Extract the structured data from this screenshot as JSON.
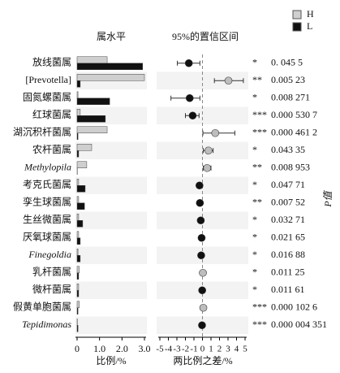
{
  "chart_data": [
    {
      "type": "hbar",
      "title": "属水平",
      "xlabel": "比例/%",
      "categories": [
        "放线菌属",
        "[Prevotella]",
        "固氮螺菌属",
        "红球菌属",
        "湖沉积杆菌属",
        "农杆菌属",
        "Methylopila",
        "考克氏菌属",
        "孪生球菌属",
        "生丝微菌属",
        "厌氧球菌属",
        "Finegoldia",
        "乳杆菌属",
        "微杆菌属",
        "假黄单胞菌属",
        "Tepidimonas"
      ],
      "italic": [
        false,
        false,
        false,
        false,
        false,
        false,
        true,
        false,
        false,
        false,
        false,
        true,
        false,
        false,
        false,
        true
      ],
      "series": [
        {
          "name": "H",
          "color": "#cfcfcf",
          "values": [
            1.34,
            3.0,
            0.04,
            0.14,
            1.34,
            0.65,
            0.43,
            0.07,
            0.07,
            0.07,
            0.07,
            0.04,
            0.1,
            0.07,
            0.1,
            0.01
          ]
        },
        {
          "name": "L",
          "color": "#111111",
          "values": [
            2.92,
            0.14,
            1.45,
            1.26,
            0.04,
            0.07,
            0.01,
            0.36,
            0.33,
            0.25,
            0.14,
            0.14,
            0.07,
            0.07,
            0.04,
            0.04
          ]
        }
      ],
      "xlim": [
        0,
        3.0
      ],
      "xticks": [
        0,
        {
          "value": 1,
          "label": "1.0"
        },
        {
          "value": 2,
          "label": "2.0"
        },
        {
          "value": 3,
          "label": "3.0"
        }
      ]
    },
    {
      "type": "errorbar",
      "title": "95%的置信区间",
      "xlabel": "两比例之差/%",
      "ylabel": "P值",
      "values": [
        -1.6,
        3.05,
        -1.5,
        -1.15,
        1.5,
        0.7,
        0.55,
        -0.35,
        -0.3,
        -0.2,
        -0.1,
        -0.15,
        0.05,
        -0.03,
        0.1,
        -0.05
      ],
      "lower": [
        -2.95,
        1.4,
        -3.7,
        -2.0,
        0.05,
        0.1,
        0.1,
        -0.6,
        -0.5,
        -0.4,
        -0.3,
        -0.35,
        -0.1,
        -0.15,
        -0.05,
        -0.15
      ],
      "upper": [
        -0.3,
        4.8,
        -0.3,
        -0.4,
        3.8,
        1.25,
        1.0,
        -0.1,
        -0.1,
        0.0,
        0.1,
        0.05,
        0.2,
        0.1,
        0.25,
        0.05
      ],
      "colors": [
        "#111111",
        "#bdbdbd",
        "#111111",
        "#111111",
        "#bdbdbd",
        "#bdbdbd",
        "#bdbdbd",
        "#111111",
        "#111111",
        "#111111",
        "#111111",
        "#111111",
        "#bdbdbd",
        "#111111",
        "#bdbdbd",
        "#111111"
      ],
      "significance": [
        "*",
        "**",
        "*",
        "***",
        "***",
        "*",
        "**",
        "*",
        "**",
        "*",
        "*",
        "*",
        "*",
        "*",
        "***",
        "***"
      ],
      "p_values": [
        0.0455,
        0.00523,
        0.008271,
        0.0005307,
        0.0004612,
        0.04335,
        0.008953,
        0.04771,
        0.00752,
        0.03271,
        0.02165,
        0.01688,
        0.01125,
        0.01161,
        0.0001026,
        4.351e-06
      ],
      "value_labels": [
        "0. 045 5",
        "0.005 23",
        "0.008 271",
        "0.000 530 7",
        "0.000 461 2",
        "0.043 35",
        "0.008 953",
        "0.047 71",
        "0.007 52",
        "0.032 71",
        "0.021 65",
        "0.016 88",
        "0.011 25",
        "0.011 61",
        "0.000 102 6",
        "0.000 004 351"
      ],
      "xlim": [
        -5,
        5
      ],
      "xticks": [
        -5,
        -4,
        -3,
        -2,
        -1,
        0,
        1,
        2,
        3,
        4,
        5
      ]
    }
  ]
}
